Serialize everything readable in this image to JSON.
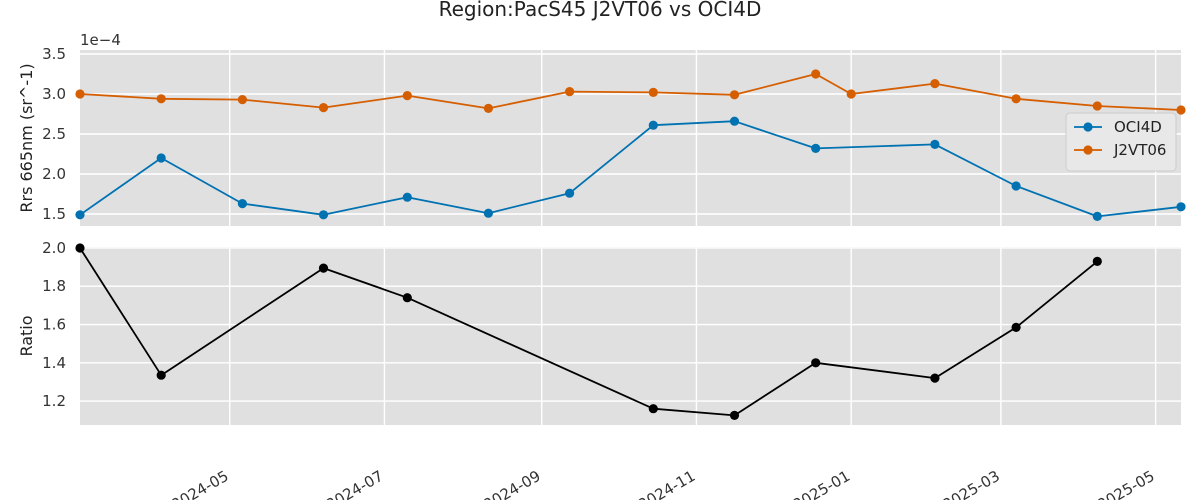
{
  "title": "Region:PacS45 J2VT06 vs OCI4D",
  "chart_data": [
    {
      "type": "line",
      "ylabel": "Rrs 665nm (sr^-1)",
      "offset_text": "1e−4",
      "ylim": [
        1.35,
        3.55
      ],
      "yticks": [
        1.5,
        2.0,
        2.5,
        3.0,
        3.5
      ],
      "ytick_labels": [
        "1.5",
        "2.0",
        "2.5",
        "3.0",
        "3.5"
      ],
      "xlim": [
        "2024-03-03",
        "2025-05-11"
      ],
      "grid": true,
      "legend_position": "right",
      "series": [
        {
          "name": "OCI4D",
          "color": "#0072b2",
          "points": [
            {
              "x": "2024-03-03",
              "y": 1.49
            },
            {
              "x": "2024-04-04",
              "y": 2.2
            },
            {
              "x": "2024-05-06",
              "y": 1.63
            },
            {
              "x": "2024-06-07",
              "y": 1.49
            },
            {
              "x": "2024-07-10",
              "y": 1.71
            },
            {
              "x": "2024-08-11",
              "y": 1.51
            },
            {
              "x": "2024-09-12",
              "y": 1.76
            },
            {
              "x": "2024-10-15",
              "y": 2.61
            },
            {
              "x": "2024-11-16",
              "y": 2.66
            },
            {
              "x": "2024-12-18",
              "y": 2.32
            },
            {
              "x": "2025-02-03",
              "y": 2.37
            },
            {
              "x": "2025-03-07",
              "y": 1.85
            },
            {
              "x": "2025-04-08",
              "y": 1.47
            },
            {
              "x": "2025-05-11",
              "y": 1.59
            }
          ]
        },
        {
          "name": "J2VT06",
          "color": "#d55e00",
          "points": [
            {
              "x": "2024-03-03",
              "y": 3.0
            },
            {
              "x": "2024-04-04",
              "y": 2.94
            },
            {
              "x": "2024-05-06",
              "y": 2.93
            },
            {
              "x": "2024-06-07",
              "y": 2.83
            },
            {
              "x": "2024-07-10",
              "y": 2.98
            },
            {
              "x": "2024-08-11",
              "y": 2.82
            },
            {
              "x": "2024-09-12",
              "y": 3.03
            },
            {
              "x": "2024-10-15",
              "y": 3.02
            },
            {
              "x": "2024-11-16",
              "y": 2.99
            },
            {
              "x": "2024-12-18",
              "y": 3.25
            },
            {
              "x": "2025-01-01",
              "y": 3.0
            },
            {
              "x": "2025-02-03",
              "y": 3.13
            },
            {
              "x": "2025-03-07",
              "y": 2.94
            },
            {
              "x": "2025-04-08",
              "y": 2.85
            },
            {
              "x": "2025-05-11",
              "y": 2.8
            }
          ]
        }
      ]
    },
    {
      "type": "line",
      "ylabel": "Ratio",
      "ylim": [
        1.075,
        2.005
      ],
      "yticks": [
        1.2,
        1.4,
        1.6,
        1.8,
        2.0
      ],
      "ytick_labels": [
        "1.2",
        "1.4",
        "1.6",
        "1.8",
        "2.0"
      ],
      "xlim": [
        "2024-03-03",
        "2025-05-11"
      ],
      "grid": true,
      "xticks": [
        "2024-05-01",
        "2024-07-01",
        "2024-09-01",
        "2024-11-01",
        "2025-01-01",
        "2025-03-01",
        "2025-05-01"
      ],
      "xtick_labels": [
        "2024-05",
        "2024-07",
        "2024-09",
        "2024-11",
        "2025-01",
        "2025-03",
        "2025-05"
      ],
      "series": [
        {
          "color": "#000000",
          "points": [
            {
              "x": "2024-03-03",
              "y": 2.0
            },
            {
              "x": "2024-04-04",
              "y": 1.335
            },
            {
              "x": "2024-06-07",
              "y": 1.895
            },
            {
              "x": "2024-07-10",
              "y": 1.74
            },
            {
              "x": "2024-10-15",
              "y": 1.16
            },
            {
              "x": "2024-11-16",
              "y": 1.125
            },
            {
              "x": "2024-12-18",
              "y": 1.4
            },
            {
              "x": "2025-02-03",
              "y": 1.32
            },
            {
              "x": "2025-03-07",
              "y": 1.585
            },
            {
              "x": "2025-04-08",
              "y": 1.93
            }
          ]
        }
      ]
    }
  ]
}
